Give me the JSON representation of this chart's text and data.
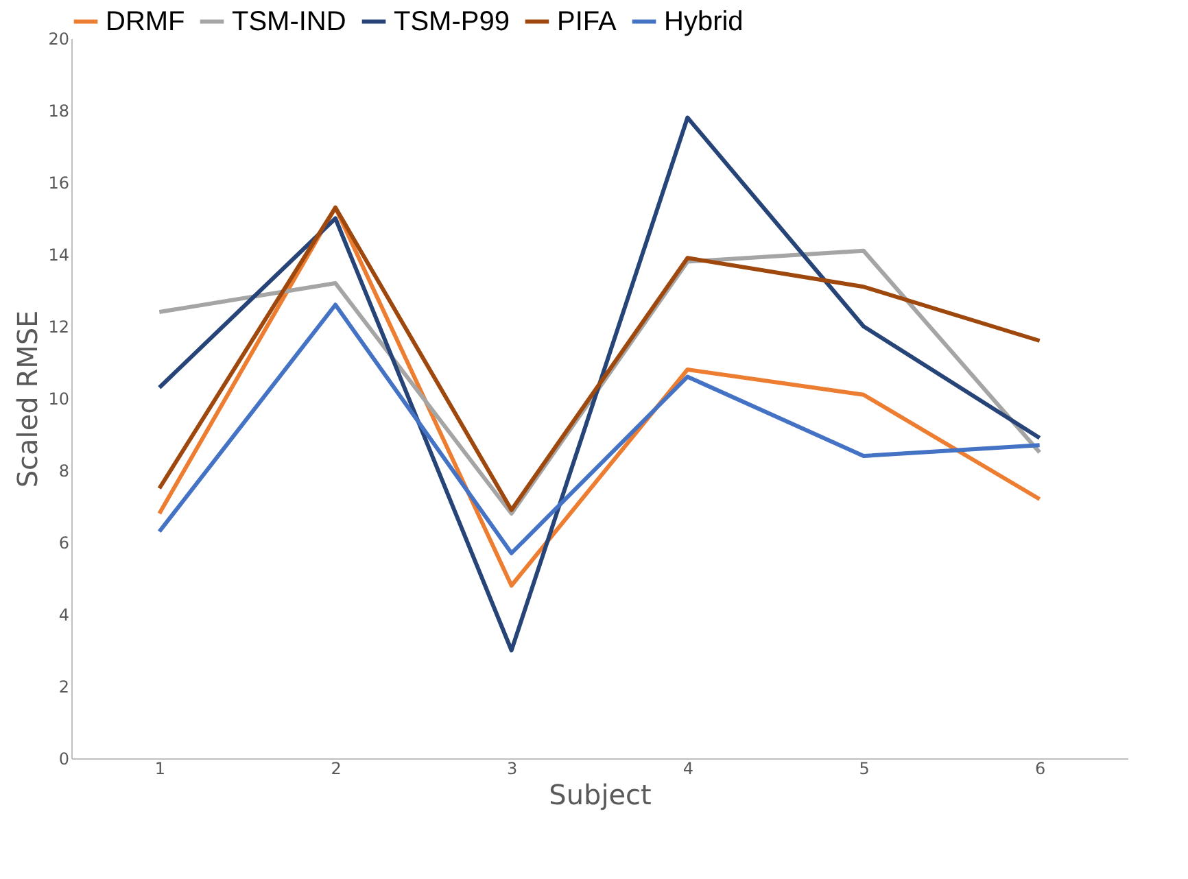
{
  "chart_data": {
    "type": "line",
    "xlabel": "Subject",
    "ylabel": "Scaled RMSE",
    "categories": [
      "1",
      "2",
      "3",
      "4",
      "5",
      "6"
    ],
    "series": [
      {
        "name": "DRMF",
        "color": "#ed7d31",
        "values": [
          6.8,
          15.3,
          4.8,
          10.8,
          10.1,
          7.2
        ]
      },
      {
        "name": "TSM-IND",
        "color": "#a5a5a5",
        "values": [
          12.4,
          13.2,
          6.8,
          13.8,
          14.1,
          8.5
        ]
      },
      {
        "name": "TSM-P99",
        "color": "#264478",
        "values": [
          10.3,
          15.0,
          3.0,
          17.8,
          12.0,
          8.9
        ]
      },
      {
        "name": "PIFA",
        "color": "#9e480e",
        "values": [
          7.5,
          15.3,
          6.9,
          13.9,
          13.1,
          11.6
        ]
      },
      {
        "name": "Hybrid",
        "color": "#4472c4",
        "values": [
          6.3,
          12.6,
          5.7,
          10.6,
          8.4,
          8.7
        ]
      }
    ],
    "ylim": [
      0,
      20
    ],
    "yticks": [
      0,
      2,
      4,
      6,
      8,
      10,
      12,
      14,
      16,
      18,
      20
    ],
    "grid": false,
    "legend": "top",
    "marker": "none",
    "line_style": "solid"
  }
}
